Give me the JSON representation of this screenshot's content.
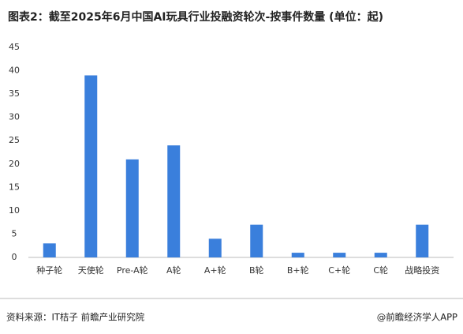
{
  "chart_data": {
    "type": "bar",
    "title": "图表2：截至2025年6月中国AI玩具行业投融资轮次-按事件数量 (单位：起)",
    "categories": [
      "种子轮",
      "天使轮",
      "Pre-A轮",
      "A轮",
      "A+轮",
      "B轮",
      "B+轮",
      "C+轮",
      "C轮",
      "战略投资"
    ],
    "values": [
      3,
      39,
      21,
      24,
      4,
      7,
      1,
      1,
      1,
      7
    ],
    "color": "#3a7fdc",
    "ylim": [
      0,
      45
    ],
    "yticks": [
      0,
      5,
      10,
      15,
      20,
      25,
      30,
      35,
      40,
      45
    ],
    "grid": false,
    "source": "资料来源：IT桔子 前瞻产业研究院",
    "credit": "@前瞻经济学人APP"
  }
}
